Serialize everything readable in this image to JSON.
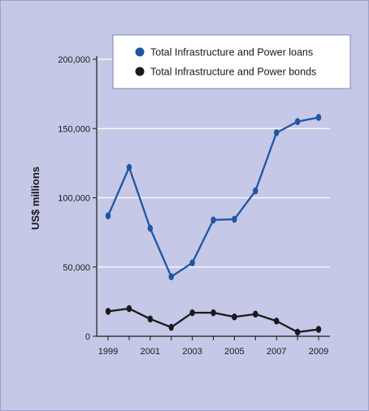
{
  "chart_data": {
    "type": "line",
    "title": "",
    "xlabel": "",
    "ylabel": "US$ millions",
    "x": [
      1999,
      2000,
      2001,
      2002,
      2003,
      2004,
      2005,
      2006,
      2007,
      2008,
      2009
    ],
    "x_tick_labels": [
      "1999",
      "2001",
      "2003",
      "2005",
      "2007",
      "2009"
    ],
    "y_tick_labels": [
      "0",
      "50,000",
      "100,000",
      "150,000",
      "200,000"
    ],
    "ylim": [
      0,
      200000
    ],
    "grid": true,
    "legend_position": "top-right",
    "series": [
      {
        "name": "Total Infrastructure and Power loans",
        "color": "#1f55a3",
        "values": [
          87000,
          122000,
          78000,
          43000,
          53000,
          84000,
          84500,
          105000,
          147000,
          155000,
          158000
        ]
      },
      {
        "name": "Total Infrastructure and Power bonds",
        "color": "#1a1a1a",
        "values": [
          18000,
          20000,
          12500,
          6500,
          17000,
          17000,
          14000,
          16000,
          11000,
          3000,
          5000
        ]
      }
    ]
  }
}
